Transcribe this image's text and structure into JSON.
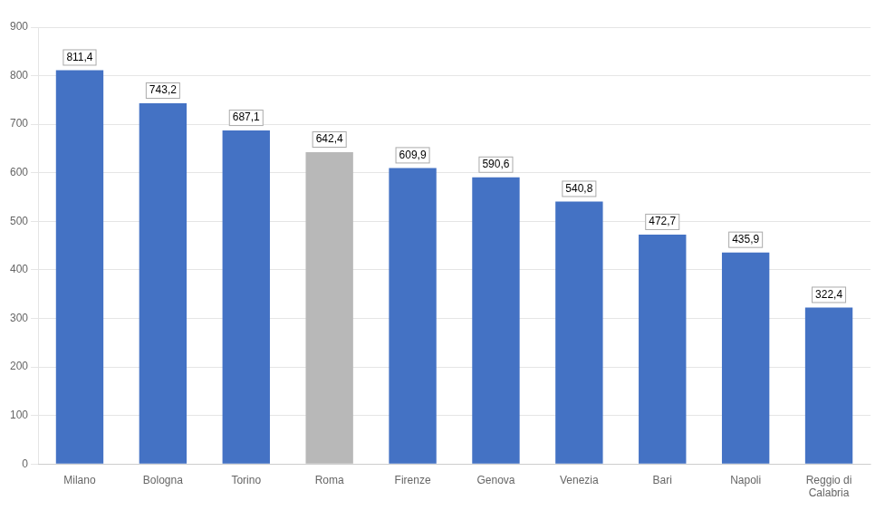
{
  "chart_data": {
    "type": "bar",
    "categories": [
      "Milano",
      "Bologna",
      "Torino",
      "Roma",
      "Firenze",
      "Genova",
      "Venezia",
      "Bari",
      "Napoli",
      "Reggio di\nCalabria"
    ],
    "values": [
      811.4,
      743.2,
      687.1,
      642.4,
      609.9,
      590.6,
      540.8,
      472.7,
      435.9,
      322.4
    ],
    "value_labels": [
      "811,4",
      "743,2",
      "687,1",
      "642,4",
      "609,9",
      "590,6",
      "540,8",
      "472,7",
      "435,9",
      "322,4"
    ],
    "colors": [
      "#4472C4",
      "#4472C4",
      "#4472C4",
      "#B8B8B8",
      "#4472C4",
      "#4472C4",
      "#4472C4",
      "#4472C4",
      "#4472C4",
      "#4472C4"
    ],
    "ylim": [
      0,
      900
    ],
    "yticks": [
      0,
      100,
      200,
      300,
      400,
      500,
      600,
      700,
      800,
      900
    ],
    "grid": true,
    "data_labels": true
  }
}
